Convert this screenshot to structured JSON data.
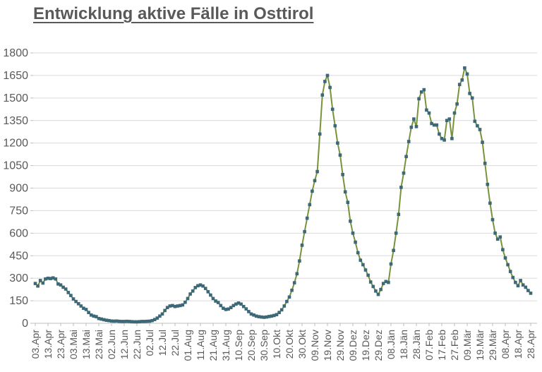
{
  "title": "Entwicklung aktive Fälle in Osttirol",
  "colors": {
    "title_text": "#595959",
    "axis_text": "#595959",
    "gridline": "#d9d9d9",
    "axis_line": "#bfbfbf",
    "line": "#77933c",
    "marker": "#3d6877",
    "background": "#ffffff"
  },
  "chart_data": {
    "type": "line",
    "title": "Entwicklung aktive Fälle in Osttirol",
    "xlabel": "",
    "ylabel": "",
    "legend": "none",
    "grid": "horizontal",
    "ylim": [
      0,
      1800
    ],
    "y_ticks": [
      0,
      150,
      300,
      450,
      600,
      750,
      900,
      1050,
      1200,
      1350,
      1500,
      1650,
      1800
    ],
    "start_date": "03.Apr",
    "end_date": "28.Apr",
    "sample_interval_days": 2,
    "x_tick_interval_days": 10,
    "x_tick_labels": [
      "03.Apr",
      "13.Apr",
      "23.Apr",
      "03.Mai",
      "13.Mai",
      "23.Mai",
      "02.Jun",
      "12.Jun",
      "22.Jun",
      "02.Jul",
      "12.Jul",
      "22.Jul",
      "01.Aug",
      "11.Aug",
      "21.Aug",
      "31.Aug",
      "10.Sep",
      "20.Sep",
      "30.Sep",
      "10.Okt",
      "20.Okt",
      "30.Okt",
      "09.Nov",
      "19.Nov",
      "29.Nov",
      "09.Dez",
      "19.Dez",
      "29.Dez",
      "08.Jän",
      "18.Jän",
      "28.Jän",
      "07.Feb",
      "17.Feb",
      "27.Feb",
      "09.Mär",
      "19.Mär",
      "29.Mär",
      "08.Apr",
      "18.Apr",
      "28.Apr"
    ],
    "marker_shape": "square",
    "values": [
      265,
      248,
      285,
      268,
      295,
      300,
      298,
      302,
      295,
      262,
      255,
      240,
      228,
      205,
      185,
      162,
      145,
      130,
      115,
      100,
      92,
      72,
      55,
      48,
      44,
      32,
      28,
      24,
      20,
      18,
      15,
      14,
      15,
      13,
      12,
      12,
      13,
      12,
      11,
      10,
      10,
      11,
      12,
      12,
      13,
      14,
      18,
      25,
      35,
      48,
      62,
      85,
      105,
      115,
      118,
      112,
      115,
      118,
      122,
      140,
      165,
      195,
      215,
      238,
      250,
      255,
      248,
      232,
      210,
      188,
      165,
      148,
      138,
      118,
      100,
      92,
      95,
      105,
      118,
      128,
      135,
      128,
      112,
      96,
      78,
      62,
      55,
      48,
      44,
      42,
      40,
      42,
      45,
      48,
      52,
      58,
      72,
      90,
      115,
      145,
      175,
      220,
      270,
      330,
      415,
      520,
      610,
      700,
      790,
      880,
      950,
      1010,
      1260,
      1520,
      1610,
      1650,
      1570,
      1425,
      1315,
      1200,
      1120,
      990,
      875,
      805,
      680,
      600,
      540,
      470,
      420,
      390,
      355,
      320,
      275,
      245,
      215,
      192,
      225,
      265,
      278,
      272,
      395,
      485,
      600,
      725,
      905,
      1000,
      1110,
      1210,
      1305,
      1360,
      1310,
      1495,
      1540,
      1555,
      1420,
      1400,
      1330,
      1320,
      1320,
      1260,
      1230,
      1220,
      1350,
      1360,
      1230,
      1400,
      1460,
      1590,
      1620,
      1700,
      1660,
      1530,
      1500,
      1345,
      1315,
      1290,
      1205,
      1065,
      925,
      800,
      690,
      600,
      560,
      575,
      490,
      435,
      390,
      345,
      305,
      272,
      250,
      285,
      255,
      240,
      218,
      200
    ]
  }
}
